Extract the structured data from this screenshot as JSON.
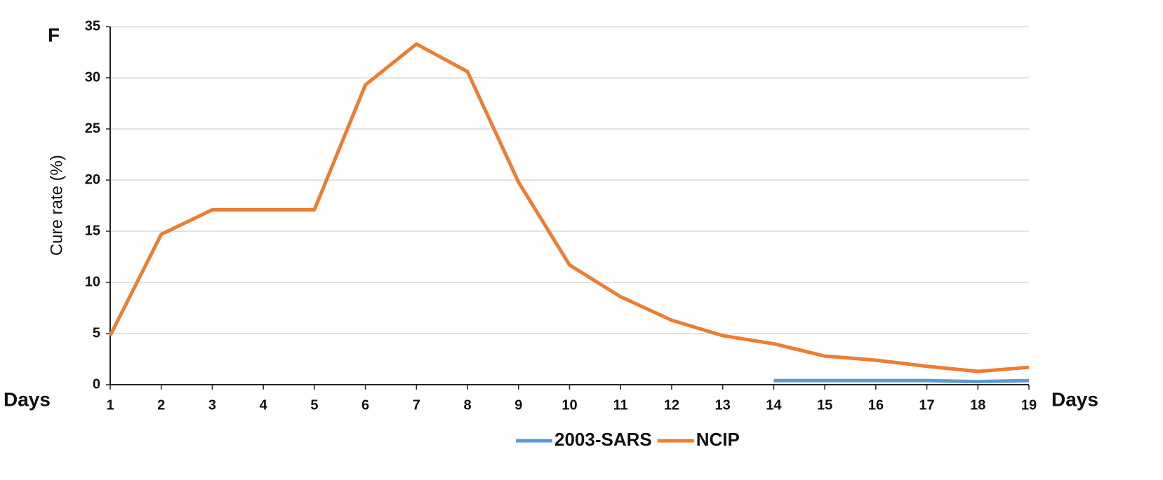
{
  "chart_data": {
    "type": "line",
    "panel_label": "F",
    "y_label": "Cure rate (%)",
    "x_label": "Days",
    "x": [
      1,
      2,
      3,
      4,
      5,
      6,
      7,
      8,
      9,
      10,
      11,
      12,
      13,
      14,
      15,
      16,
      17,
      18,
      19
    ],
    "series": [
      {
        "name": "2003-SARS",
        "color": "#5b9bd5",
        "values": [
          null,
          null,
          null,
          null,
          null,
          null,
          null,
          null,
          null,
          null,
          null,
          null,
          null,
          0.4,
          0.4,
          0.4,
          0.4,
          0.3,
          0.4
        ]
      },
      {
        "name": "NCIP",
        "color": "#ed7d31",
        "values": [
          4.8,
          14.7,
          17.1,
          17.1,
          17.1,
          29.3,
          33.3,
          30.6,
          19.8,
          11.7,
          8.6,
          6.3,
          4.8,
          4.0,
          2.8,
          2.4,
          1.8,
          1.3,
          1.7
        ]
      }
    ],
    "xlim": [
      1,
      19
    ],
    "xticks": [
      1,
      2,
      3,
      4,
      5,
      6,
      7,
      8,
      9,
      10,
      11,
      12,
      13,
      14,
      15,
      16,
      17,
      18,
      19
    ],
    "ylim": [
      0,
      35
    ],
    "yticks": [
      0,
      5,
      10,
      15,
      20,
      25,
      30,
      35
    ],
    "grid": true,
    "legend": "bottom"
  }
}
